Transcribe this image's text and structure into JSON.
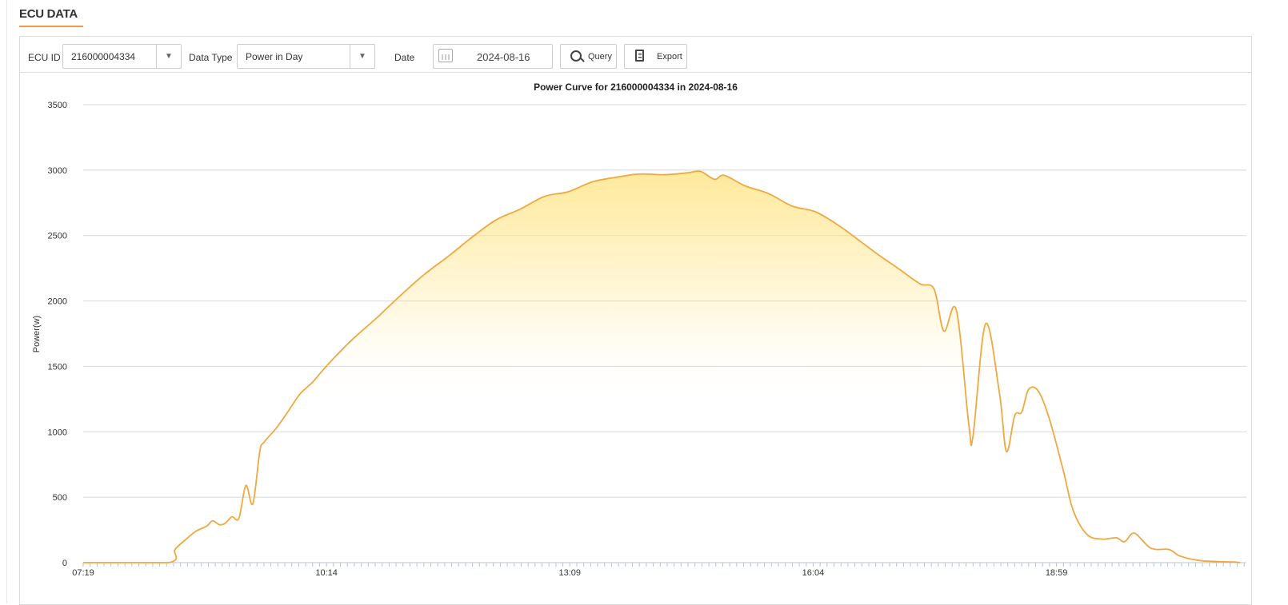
{
  "page": {
    "title": "ECU DATA"
  },
  "toolbar": {
    "ecu_id_label": "ECU ID",
    "ecu_id_value": "216000004334",
    "data_type_label": "Data Type",
    "data_type_value": "Power in Day",
    "date_label": "Date",
    "date_value": "2024-08-16",
    "query_label": "Query",
    "export_label": "Export"
  },
  "colors": {
    "accent": "#ee9a4d",
    "line": "#f0a840",
    "fill_top": "#ffe27a"
  },
  "chart_data": {
    "type": "area",
    "title": "Power Curve for 216000004334 in 2024-08-16",
    "xlabel": "",
    "ylabel": "Power(w)",
    "ylim": [
      0,
      3500
    ],
    "yticks": [
      0,
      500,
      1000,
      1500,
      2000,
      2500,
      3000,
      3500
    ],
    "xlim": [
      "07:19",
      "21:11"
    ],
    "xtick_labels": [
      "07:19",
      "10:14",
      "13:09",
      "16:04",
      "18:59"
    ],
    "grid": "horizontal",
    "x": [
      "07:19",
      "08:20",
      "08:25",
      "08:32",
      "08:40",
      "08:48",
      "08:52",
      "08:57",
      "09:01",
      "09:06",
      "09:11",
      "09:16",
      "09:21",
      "09:26",
      "09:29",
      "09:38",
      "09:46",
      "09:55",
      "10:04",
      "10:15",
      "10:32",
      "10:50",
      "11:07",
      "11:24",
      "11:42",
      "11:59",
      "12:16",
      "12:33",
      "12:51",
      "13:08",
      "13:25",
      "13:42",
      "13:59",
      "14:17",
      "14:34",
      "14:43",
      "14:53",
      "15:00",
      "15:15",
      "15:32",
      "15:49",
      "16:06",
      "16:24",
      "16:38",
      "16:52",
      "17:07",
      "17:21",
      "17:31",
      "17:38",
      "17:47",
      "17:56",
      "17:59",
      "18:08",
      "18:18",
      "18:23",
      "18:29",
      "18:34",
      "18:39",
      "18:46",
      "18:54",
      "19:04",
      "19:11",
      "19:21",
      "19:32",
      "19:42",
      "19:48",
      "19:55",
      "20:07",
      "20:20",
      "20:28",
      "20:43",
      "21:06",
      "21:11"
    ],
    "values": [
      0,
      0,
      100,
      170,
      240,
      280,
      320,
      290,
      300,
      350,
      340,
      590,
      450,
      850,
      920,
      1030,
      1150,
      1290,
      1380,
      1515,
      1700,
      1870,
      2040,
      2200,
      2345,
      2490,
      2620,
      2700,
      2800,
      2835,
      2910,
      2945,
      2970,
      2965,
      2980,
      2990,
      2930,
      2960,
      2880,
      2820,
      2725,
      2680,
      2565,
      2455,
      2345,
      2235,
      2130,
      2090,
      1770,
      1930,
      1050,
      970,
      1825,
      1295,
      850,
      1125,
      1150,
      1325,
      1310,
      1095,
      700,
      400,
      215,
      180,
      190,
      160,
      225,
      110,
      100,
      50,
      15,
      5,
      0
    ]
  }
}
